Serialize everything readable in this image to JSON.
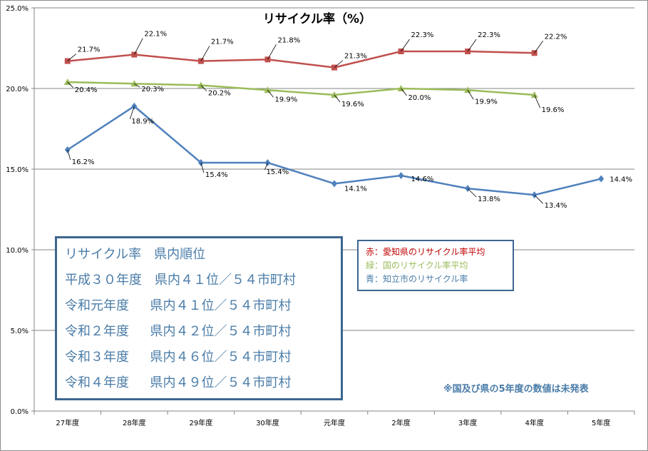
{
  "chart_data": {
    "type": "line",
    "title": "リサイクル率（%）",
    "categories": [
      "27年度",
      "28年度",
      "29年度",
      "30年度",
      "元年度",
      "2年度",
      "3年度",
      "4年度",
      "5年度"
    ],
    "ylim": [
      0,
      25
    ],
    "yticks": [
      "0.0%",
      "5.0%",
      "10.0%",
      "15.0%",
      "20.0%",
      "25.0%"
    ],
    "grid": true,
    "series": [
      {
        "key": "red",
        "color": "#c0504d",
        "marker": "square",
        "values": [
          21.7,
          22.1,
          21.7,
          21.8,
          21.3,
          22.3,
          22.3,
          22.2,
          null
        ],
        "labels": [
          "21.7%",
          "22.1%",
          "21.7%",
          "21.8%",
          "21.3%",
          "22.3%",
          "22.3%",
          "22.2%",
          ""
        ]
      },
      {
        "key": "green",
        "color": "#9bbb59",
        "marker": "triangle",
        "values": [
          20.4,
          20.3,
          20.2,
          19.9,
          19.6,
          20.0,
          19.9,
          19.6,
          null
        ],
        "labels": [
          "20.4%",
          "20.3%",
          "20.2%",
          "19.9%",
          "19.6%",
          "20.0%",
          "19.9%",
          "19.6%",
          ""
        ]
      },
      {
        "key": "blue",
        "color": "#4f81bd",
        "marker": "diamond",
        "values": [
          16.2,
          18.9,
          15.4,
          15.4,
          14.1,
          14.6,
          13.8,
          13.4,
          14.4
        ],
        "labels": [
          "16.2%",
          "18.9%",
          "15.4%",
          "15.4%",
          "14.1%",
          "14.6%",
          "13.8%",
          "13.4%",
          "14.4%"
        ]
      }
    ]
  },
  "ranking": {
    "header": "リサイクル率　県内順位",
    "rows": [
      "平成３０年度　県内４１位／５４市町村",
      "令和元年度　  県内４１位／５４市町村",
      "令和２年度　  県内４２位／５４市町村",
      "令和３年度　  県内４６位／５４市町村",
      "令和４年度　  県内４９位／５４市町村"
    ]
  },
  "legend": {
    "red": "赤：愛知県のリサイクル率平均",
    "green": "緑：国のリサイクル率平均",
    "blue": "青：知立市のリサイクル率",
    "red_color": "#c00000",
    "green_color": "#9bbb59",
    "blue_color": "#4a7ca8"
  },
  "note": "※国及び県の5年度の数値は未発表"
}
